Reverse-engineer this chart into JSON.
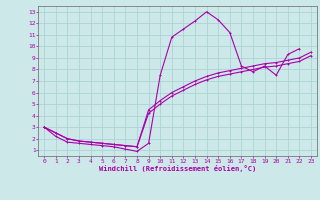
{
  "xlabel": "Windchill (Refroidissement éolien,°C)",
  "background_color": "#cce8e8",
  "grid_color": "#aad4d4",
  "line_color": "#aa00aa",
  "spine_color": "#666666",
  "xlim": [
    -0.5,
    23.5
  ],
  "ylim": [
    0.5,
    13.5
  ],
  "xticks": [
    0,
    1,
    2,
    3,
    4,
    5,
    6,
    7,
    8,
    9,
    10,
    11,
    12,
    13,
    14,
    15,
    16,
    17,
    18,
    19,
    20,
    21,
    22,
    23
  ],
  "yticks": [
    1,
    2,
    3,
    4,
    5,
    6,
    7,
    8,
    9,
    10,
    11,
    12,
    13
  ],
  "c1x": [
    0,
    1,
    2,
    3,
    4,
    5,
    6,
    7,
    8,
    9,
    10,
    11,
    12,
    13,
    14,
    15,
    16,
    17,
    18,
    19,
    20,
    21,
    22
  ],
  "c1y": [
    3.0,
    2.2,
    1.7,
    1.6,
    1.5,
    1.4,
    1.3,
    1.1,
    0.9,
    1.6,
    7.5,
    10.8,
    11.5,
    12.2,
    13.0,
    12.3,
    11.2,
    8.3,
    7.8,
    8.3,
    7.5,
    9.3,
    9.8
  ],
  "c2x": [
    0,
    1,
    2,
    3,
    4,
    5,
    6,
    7,
    8,
    9,
    10,
    11,
    12,
    13,
    14,
    15,
    16,
    17,
    18,
    19,
    20,
    21,
    22,
    23
  ],
  "c2y": [
    3.0,
    2.5,
    2.0,
    1.8,
    1.7,
    1.6,
    1.5,
    1.4,
    1.3,
    4.5,
    5.3,
    6.0,
    6.5,
    7.0,
    7.4,
    7.7,
    7.9,
    8.1,
    8.3,
    8.5,
    8.6,
    8.8,
    9.0,
    9.5
  ],
  "c3x": [
    0,
    1,
    2,
    3,
    4,
    5,
    6,
    7,
    8,
    9,
    10,
    11,
    12,
    13,
    14,
    15,
    16,
    17,
    18,
    19,
    20,
    21,
    22,
    23
  ],
  "c3y": [
    3.0,
    2.5,
    2.0,
    1.8,
    1.7,
    1.6,
    1.5,
    1.4,
    1.3,
    4.2,
    5.0,
    5.7,
    6.2,
    6.7,
    7.1,
    7.4,
    7.6,
    7.8,
    8.0,
    8.2,
    8.3,
    8.5,
    8.7,
    9.2
  ]
}
